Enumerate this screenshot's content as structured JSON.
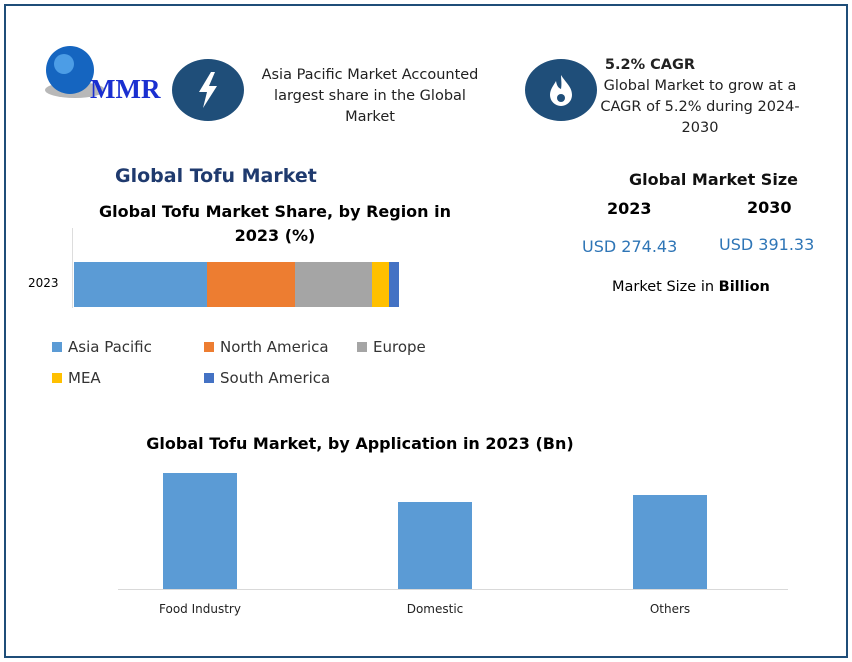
{
  "logo": {
    "text": "MMR"
  },
  "highlights": [
    {
      "icon": "lightning-icon",
      "text": "Asia Pacific Market Accounted largest share in the Global Market"
    },
    {
      "icon": "flame-icon",
      "title": "5.2% CAGR",
      "text": "Global Market to grow at a CAGR of 5.2% during 2024-2030"
    }
  ],
  "section_title": "Global Tofu Market",
  "market_size": {
    "title": "Global Market Size",
    "years": [
      "2023",
      "2030"
    ],
    "values": [
      "USD 274.43",
      "USD 391.33"
    ],
    "unit_prefix": "Market Size in ",
    "unit": "Billion"
  },
  "colors": {
    "Asia Pacific": "#5b9bd5",
    "North America": "#ed7d31",
    "Europe": "#a5a5a5",
    "MEA": "#ffc000",
    "South America": "#4472c4",
    "bars": "#5b9bd5",
    "frame": "#1f4e79"
  },
  "chart_data": [
    {
      "type": "bar",
      "stacked": true,
      "orientation": "horizontal",
      "title": "Global Tofu Market Share, by Region in 2023 (%)",
      "categories": [
        "2023"
      ],
      "series": [
        {
          "name": "Asia Pacific",
          "values": [
            40.9
          ]
        },
        {
          "name": "North America",
          "values": [
            27.1
          ]
        },
        {
          "name": "Europe",
          "values": [
            23.7
          ]
        },
        {
          "name": "MEA",
          "values": [
            5.2
          ]
        },
        {
          "name": "South America",
          "values": [
            3.1
          ]
        }
      ],
      "xlim": [
        0,
        100
      ],
      "grid": false,
      "legend": "bottom"
    },
    {
      "type": "bar",
      "title": "Global Tofu Market, by Application in 2023 (Bn)",
      "categories": [
        "Food Industry",
        "Domestic",
        "Others"
      ],
      "values": [
        107.3,
        80.0,
        87.1
      ],
      "ylim": [
        0,
        120
      ],
      "grid": false
    }
  ]
}
